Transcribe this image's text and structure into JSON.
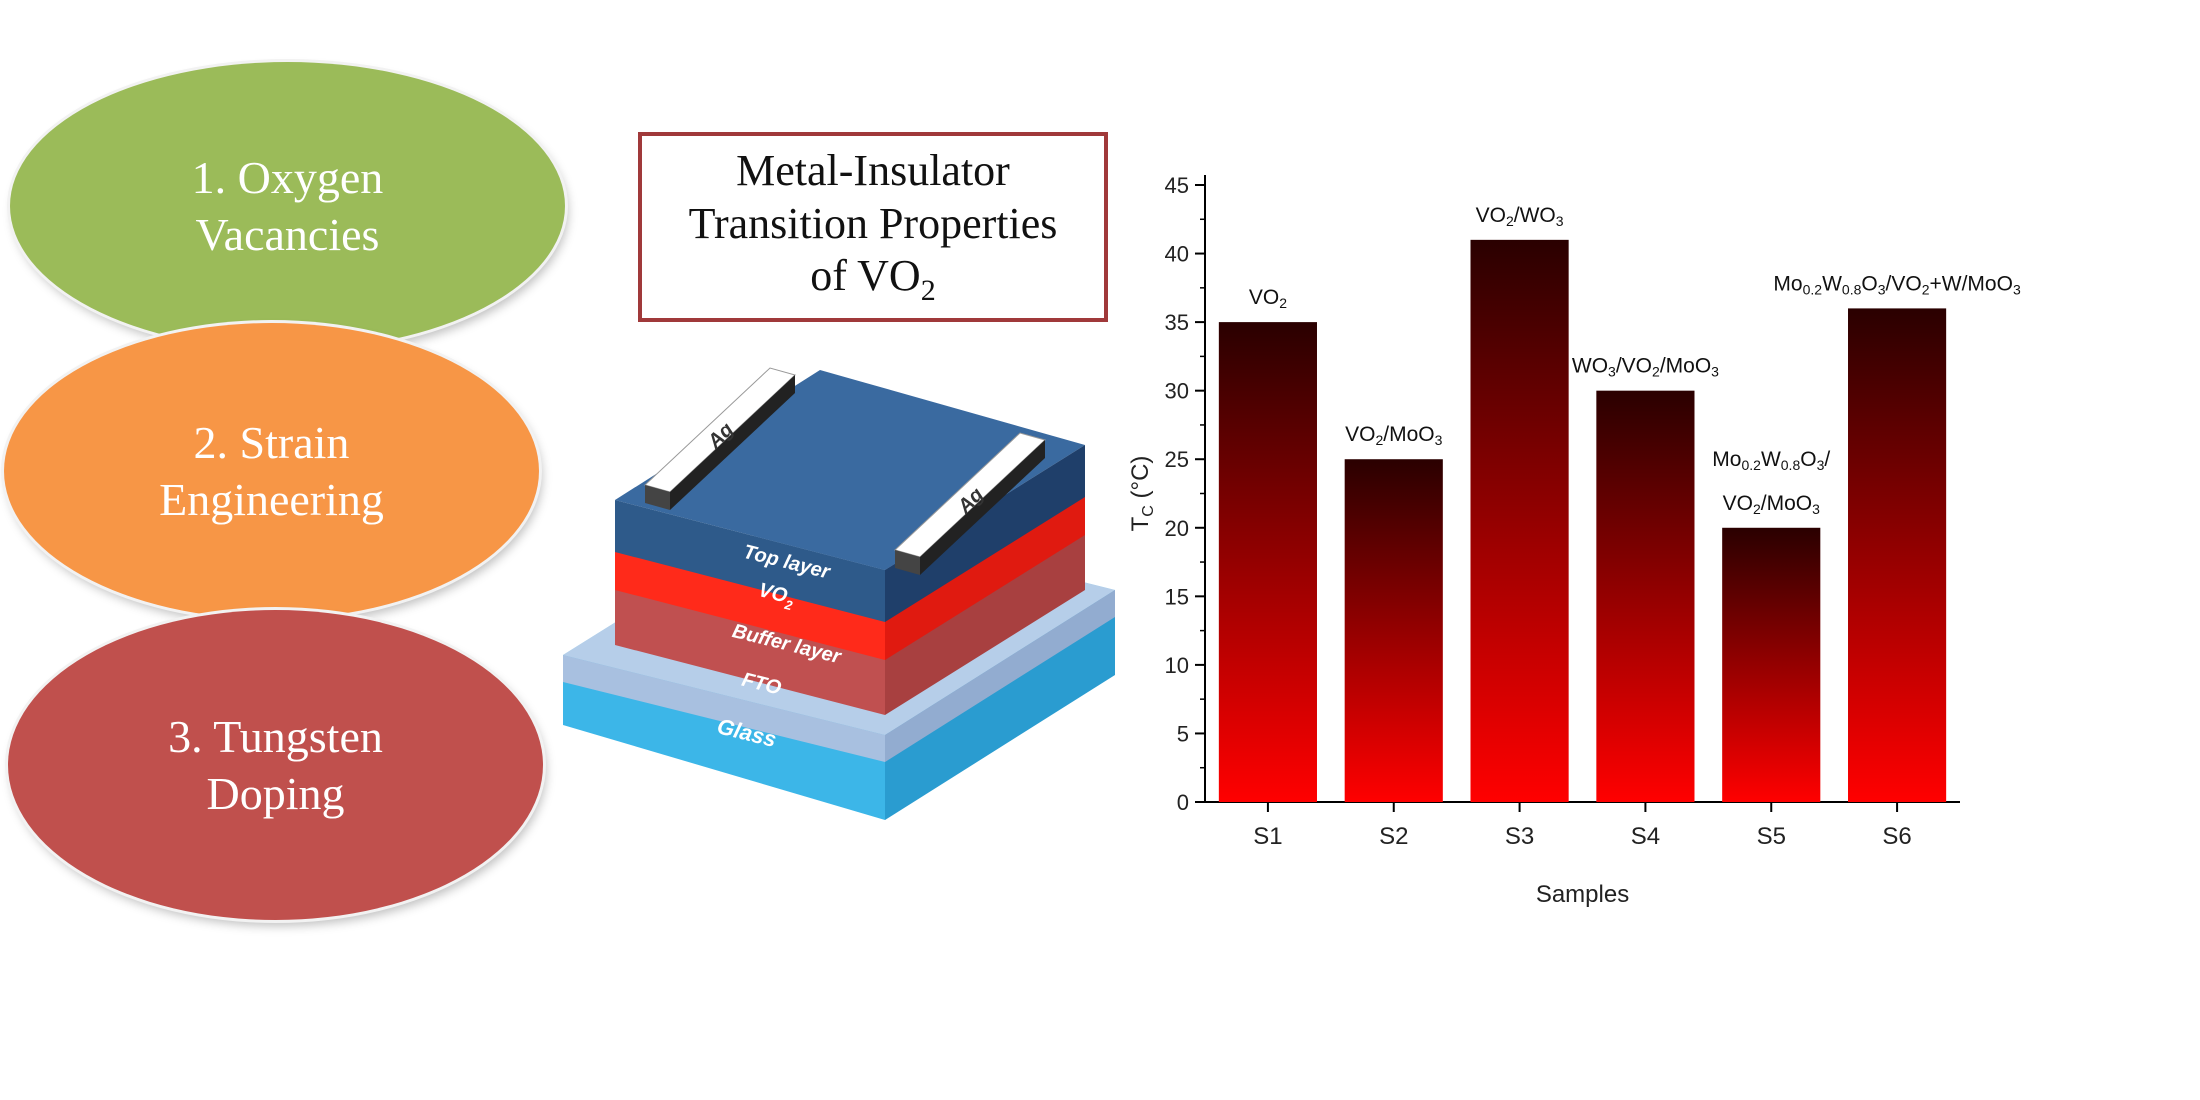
{
  "left_items": [
    {
      "label": "1. Oxygen\nVacancies",
      "color": "#9bbb59"
    },
    {
      "label": "2. Strain\nEngineering",
      "color": "#f79646"
    },
    {
      "label": "3. Tungsten\nDoping",
      "color": "#c0504d"
    }
  ],
  "title_box": {
    "line1": "Metal-Insulator",
    "line2": "Transition Properties",
    "line3_main": "of VO",
    "line3_sub": "2"
  },
  "device": {
    "electrode_left": "Ag",
    "electrode_right": "Ag",
    "layer_top": "Top layer",
    "layer_vo2_main": "VO",
    "layer_vo2_sub": "2",
    "layer_buffer": "Buffer layer",
    "layer_fto": "FTO",
    "layer_glass": "Glass",
    "colors": {
      "top": "#2e5a8a",
      "vo2": "#ff2a1a",
      "buffer": "#c05050",
      "fto": "#a8c0e0",
      "glass": "#3cb6e8",
      "ag": "#ffffff"
    }
  },
  "chart_data": {
    "type": "bar",
    "categories": [
      "S1",
      "S2",
      "S3",
      "S4",
      "S5",
      "S6"
    ],
    "values": [
      35,
      25,
      41,
      30,
      20,
      36
    ],
    "xlabel": "Samples",
    "ylabel_main": "T",
    "ylabel_sub": "C",
    "ylabel_unit": " (°C)",
    "ylim": [
      0,
      45
    ],
    "yticks": [
      0,
      5,
      10,
      15,
      20,
      25,
      30,
      35,
      40,
      45
    ],
    "bar_gradient": [
      "#2a0000",
      "#ff0000"
    ],
    "bar_labels": [
      [
        {
          "t": "VO"
        },
        {
          "t": "2",
          "sub": true
        }
      ],
      [
        {
          "t": "VO"
        },
        {
          "t": "2",
          "sub": true
        },
        {
          "t": "/MoO"
        },
        {
          "t": "3",
          "sub": true
        }
      ],
      [
        {
          "t": "VO"
        },
        {
          "t": "2",
          "sub": true
        },
        {
          "t": "/WO"
        },
        {
          "t": "3",
          "sub": true
        }
      ],
      [
        {
          "t": "WO"
        },
        {
          "t": "3",
          "sub": true
        },
        {
          "t": "/VO"
        },
        {
          "t": "2",
          "sub": true
        },
        {
          "t": "/MoO"
        },
        {
          "t": "3",
          "sub": true
        }
      ],
      [
        {
          "t": "Mo"
        },
        {
          "t": "0.2",
          "sub": true
        },
        {
          "t": "W"
        },
        {
          "t": "0.8",
          "sub": true
        },
        {
          "t": "O"
        },
        {
          "t": "3",
          "sub": true
        },
        {
          "t": "/"
        },
        {
          "t": "\n"
        },
        {
          "t": "VO"
        },
        {
          "t": "2",
          "sub": true
        },
        {
          "t": "/MoO"
        },
        {
          "t": "3",
          "sub": true
        }
      ],
      [
        {
          "t": "Mo"
        },
        {
          "t": "0.2",
          "sub": true
        },
        {
          "t": "W"
        },
        {
          "t": "0.8",
          "sub": true
        },
        {
          "t": "O"
        },
        {
          "t": "3",
          "sub": true
        },
        {
          "t": "/VO"
        },
        {
          "t": "2",
          "sub": true
        },
        {
          "t": "+W/MoO"
        },
        {
          "t": "3",
          "sub": true
        }
      ]
    ]
  }
}
